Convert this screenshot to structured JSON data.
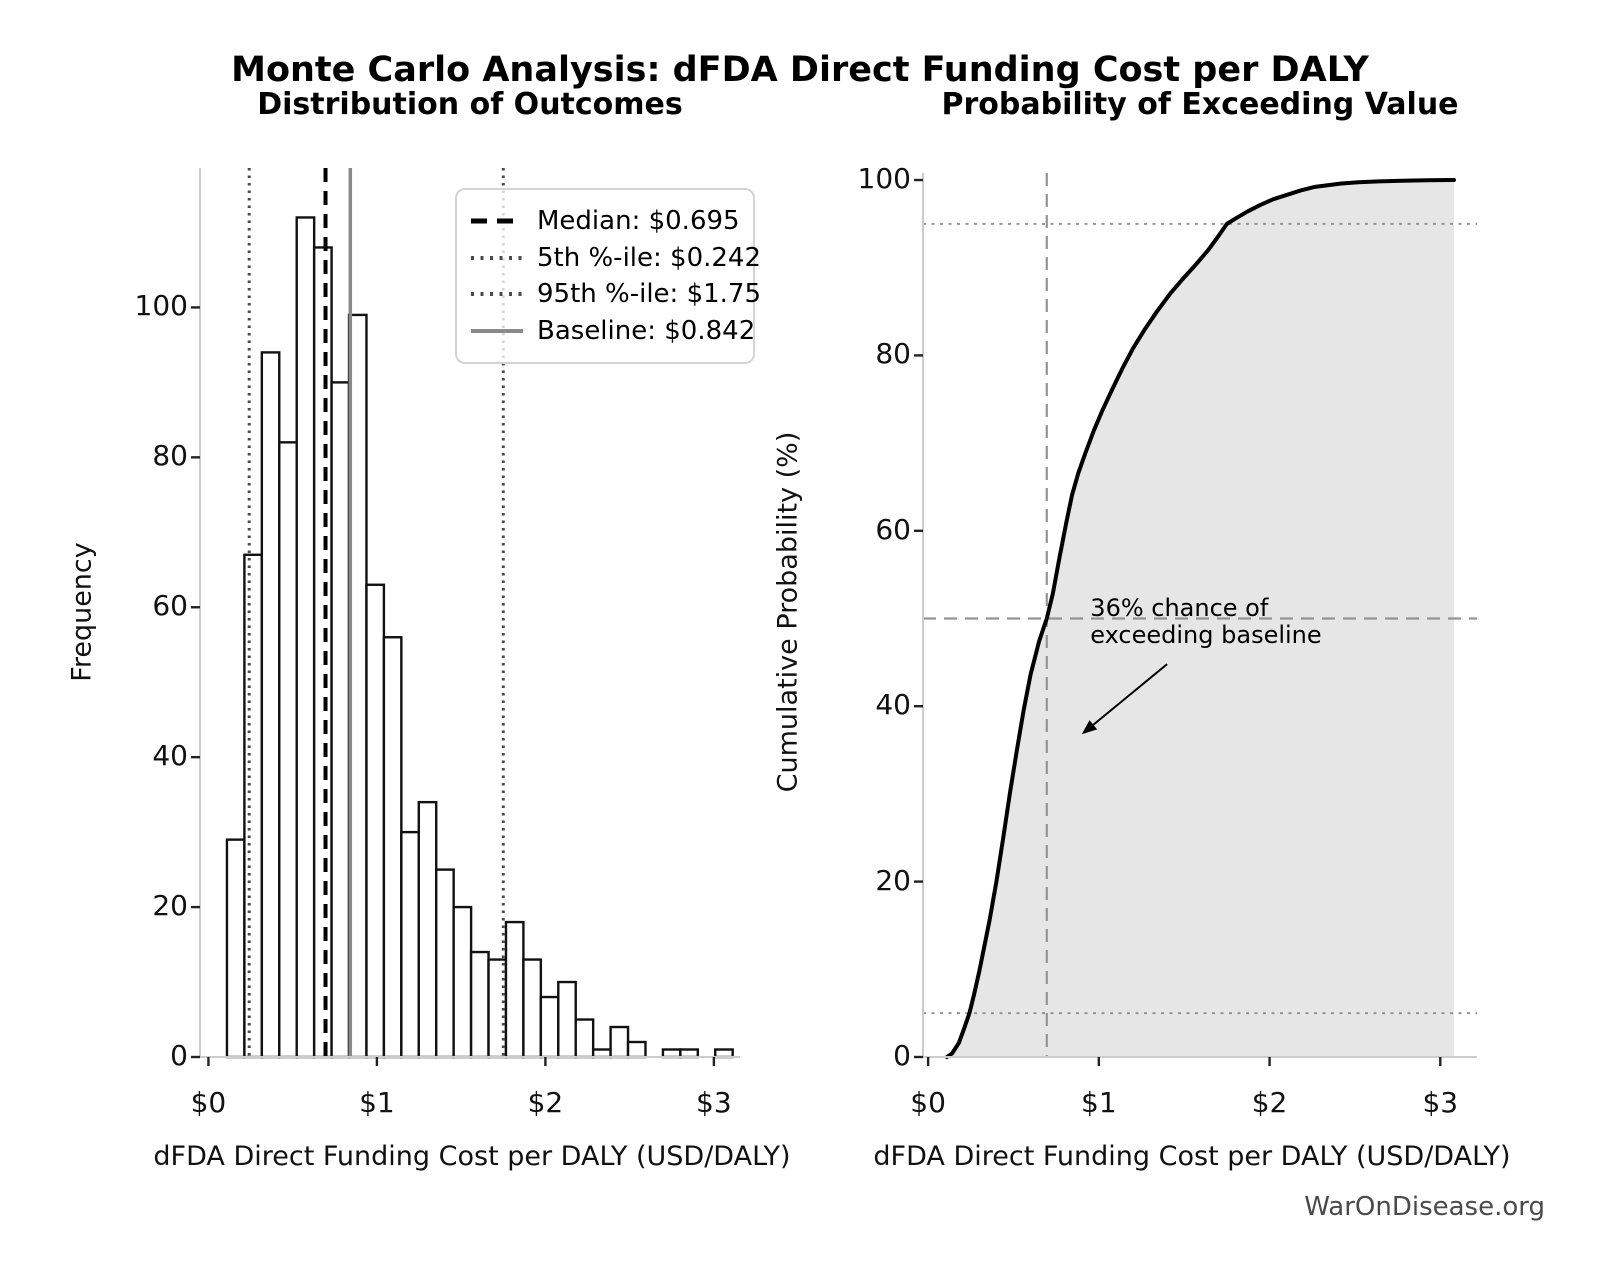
{
  "title": "Monte Carlo Analysis: dFDA Direct Funding Cost per DALY",
  "footer": "WarOnDisease.org",
  "colors": {
    "bar_fill": "#ffffff",
    "bar_edge": "#111111",
    "median_line": "#000000",
    "percentile_line": "#4a4a4a",
    "baseline_line": "#8a8a8a",
    "cdf_line": "#000000",
    "cdf_fill": "#e6e6e6",
    "guide_line": "#949494",
    "spine": "#cccccc",
    "tick_mark": "#222222",
    "footer_text": "#4a4a4a"
  },
  "chart_data": [
    {
      "type": "bar",
      "title": "Distribution of Outcomes",
      "xlabel": "dFDA Direct Funding Cost per DALY (USD/DALY)",
      "ylabel": "Frequency",
      "bin_start": 0.11,
      "bin_width": 0.1035,
      "values": [
        29,
        67,
        94,
        82,
        112,
        108,
        90,
        99,
        63,
        56,
        30,
        34,
        25,
        20,
        14,
        13,
        18,
        13,
        8,
        10,
        5,
        1,
        4,
        2,
        0,
        1,
        1,
        0,
        1
      ],
      "total_samples_shown": 1000,
      "xlim": [
        -0.05,
        3.155
      ],
      "ylim": [
        0,
        118.6
      ],
      "xticks": [
        {
          "value": 0,
          "label": "$0"
        },
        {
          "value": 1,
          "label": "$1"
        },
        {
          "value": 2,
          "label": "$2"
        },
        {
          "value": 3,
          "label": "$3"
        }
      ],
      "yticks": [
        0,
        20,
        40,
        60,
        80,
        100
      ],
      "grid": false,
      "legend_position": "upper right",
      "ref_lines": [
        {
          "label": "Median: $0.695",
          "value": 0.695,
          "style": "dashed",
          "color": "#000000",
          "width": 4
        },
        {
          "label": "5th %-ile: $0.242",
          "value": 0.242,
          "style": "dotted",
          "color": "#4a4a4a",
          "width": 3
        },
        {
          "label": "95th %-ile: $1.75",
          "value": 1.75,
          "style": "dotted",
          "color": "#4a4a4a",
          "width": 3
        },
        {
          "label": "Baseline: $0.842",
          "value": 0.842,
          "style": "solid",
          "color": "#8a8a8a",
          "width": 3.5
        }
      ]
    },
    {
      "type": "line",
      "title": "Probability of Exceeding Value",
      "xlabel": "dFDA Direct Funding Cost per DALY (USD/DALY)",
      "ylabel": "Cumulative Probability (%)",
      "xlim": [
        -0.03,
        3.215
      ],
      "ylim": [
        0,
        100.8
      ],
      "xticks": [
        {
          "value": 0,
          "label": "$0"
        },
        {
          "value": 1,
          "label": "$1"
        },
        {
          "value": 2,
          "label": "$2"
        },
        {
          "value": 3,
          "label": "$3"
        }
      ],
      "yticks": [
        0,
        20,
        40,
        60,
        80,
        100
      ],
      "grid": false,
      "fill_under_curve": true,
      "points": [
        [
          0.11,
          0
        ],
        [
          0.14,
          0.4
        ],
        [
          0.18,
          1.6
        ],
        [
          0.21,
          3.2
        ],
        [
          0.242,
          5
        ],
        [
          0.27,
          7.2
        ],
        [
          0.3,
          9.8
        ],
        [
          0.33,
          12.7
        ],
        [
          0.36,
          15.6
        ],
        [
          0.4,
          20
        ],
        [
          0.44,
          25
        ],
        [
          0.48,
          30.2
        ],
        [
          0.52,
          35
        ],
        [
          0.56,
          39.6
        ],
        [
          0.6,
          43.6
        ],
        [
          0.65,
          47.4
        ],
        [
          0.695,
          50
        ],
        [
          0.73,
          52.8
        ],
        [
          0.77,
          57
        ],
        [
          0.81,
          61
        ],
        [
          0.842,
          64
        ],
        [
          0.88,
          66.6
        ],
        [
          0.92,
          68.8
        ],
        [
          0.97,
          71.4
        ],
        [
          1.02,
          73.7
        ],
        [
          1.08,
          76.2
        ],
        [
          1.14,
          78.6
        ],
        [
          1.2,
          80.8
        ],
        [
          1.27,
          83
        ],
        [
          1.34,
          85
        ],
        [
          1.42,
          87.1
        ],
        [
          1.5,
          88.9
        ],
        [
          1.57,
          90.4
        ],
        [
          1.64,
          92
        ],
        [
          1.7,
          93.6
        ],
        [
          1.75,
          95
        ],
        [
          1.8,
          95.6
        ],
        [
          1.87,
          96.4
        ],
        [
          1.94,
          97.1
        ],
        [
          2.02,
          97.8
        ],
        [
          2.1,
          98.3
        ],
        [
          2.18,
          98.8
        ],
        [
          2.26,
          99.2
        ],
        [
          2.34,
          99.4
        ],
        [
          2.42,
          99.6
        ],
        [
          2.52,
          99.75
        ],
        [
          2.64,
          99.85
        ],
        [
          2.78,
          99.92
        ],
        [
          2.92,
          99.97
        ],
        [
          3.08,
          100
        ]
      ],
      "hlines": [
        {
          "value": 5,
          "style": "dotted",
          "width": 2
        },
        {
          "value": 50,
          "style": "dashed",
          "width": 2.2
        },
        {
          "value": 95,
          "style": "dotted",
          "width": 2
        }
      ],
      "vlines": [
        {
          "value": 0.695,
          "style": "dashed",
          "width": 2.2
        }
      ],
      "annotation": {
        "line1": "36% chance of",
        "line2": "exceeding baseline",
        "text_x": 0.95,
        "text_y": 52.7,
        "arrow_from": [
          1.4,
          44.8
        ],
        "arrow_to": [
          0.9,
          36.8
        ]
      }
    }
  ]
}
